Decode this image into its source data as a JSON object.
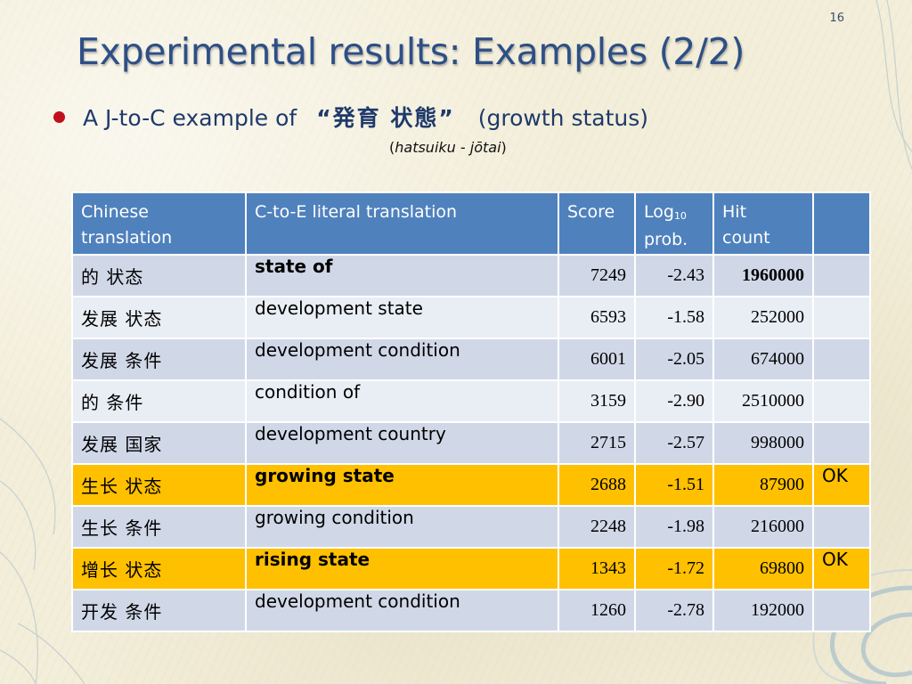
{
  "slide_number": "16",
  "title": "Experimental results: Examples (2/2)",
  "bullet": {
    "prefix": "A J-to-C example of",
    "japanese_term": "“発育 状態”",
    "gloss": "(growth status)"
  },
  "romanization": {
    "open": "(",
    "word1": "hatsuiku",
    "separator": " - ",
    "word2": "jōtai",
    "close": ")"
  },
  "colors": {
    "title": "#2d4f86",
    "header_bg": "#4f81bd",
    "row_bg": "#d0d8e8",
    "row_alt_bg": "#e9edf4",
    "ok_row_bg": "#ffc000",
    "bullet": "#c0101b"
  },
  "table": {
    "headers": {
      "chinese": [
        "Chinese",
        "translation"
      ],
      "literal": "C-to-E literal translation",
      "score": "Score",
      "logprob": [
        "Log",
        "10",
        "prob."
      ],
      "hits": [
        "Hit",
        "count"
      ],
      "flag": ""
    },
    "rows": [
      {
        "chinese": "的 状态",
        "literal": "state of",
        "score": "7249",
        "logprob": "-2.43",
        "hits": "1960000",
        "flag": ""
      },
      {
        "chinese": "发展 状态",
        "literal": "development state",
        "score": "6593",
        "logprob": "-1.58",
        "hits": "252000",
        "flag": ""
      },
      {
        "chinese": "发展 条件",
        "literal": "development condition",
        "score": "6001",
        "logprob": "-2.05",
        "hits": "674000",
        "flag": ""
      },
      {
        "chinese": "的 条件",
        "literal": "condition of",
        "score": "3159",
        "logprob": "-2.90",
        "hits": "2510000",
        "flag": ""
      },
      {
        "chinese": "发展 国家",
        "literal": "development country",
        "score": "2715",
        "logprob": "-2.57",
        "hits": "998000",
        "flag": ""
      },
      {
        "chinese": "生长 状态",
        "literal": "growing state",
        "score": "2688",
        "logprob": "-1.51",
        "hits": "87900",
        "flag": "OK"
      },
      {
        "chinese": "生长 条件",
        "literal": "growing condition",
        "score": "2248",
        "logprob": "-1.98",
        "hits": "216000",
        "flag": ""
      },
      {
        "chinese": "增长 状态",
        "literal": "rising state",
        "score": "1343",
        "logprob": "-1.72",
        "hits": "69800",
        "flag": "OK"
      },
      {
        "chinese": "开发 条件",
        "literal": "development condition",
        "score": "1260",
        "logprob": "-2.78",
        "hits": "192000",
        "flag": ""
      }
    ]
  }
}
